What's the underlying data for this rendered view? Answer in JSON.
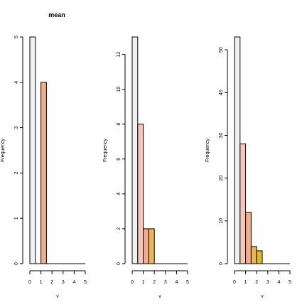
{
  "chart_data": [
    {
      "type": "bar",
      "title": "mean",
      "xlabel": "v",
      "ylabel": "Frequency",
      "xlim": [
        0,
        5
      ],
      "ylim": [
        0,
        5
      ],
      "xticks": [
        "0",
        "1",
        "2",
        "3",
        "4",
        "5"
      ],
      "yticks": [
        "0",
        "1",
        "2",
        "3",
        "4",
        "5"
      ],
      "bins": [
        [
          0,
          0.5
        ],
        [
          0.5,
          1
        ],
        [
          1,
          1.5
        ]
      ],
      "values": [
        5,
        0,
        4
      ],
      "colors": [
        "#f0f0f0",
        "#f3c6bb",
        "#eeaf8e"
      ]
    },
    {
      "type": "bar",
      "title": "",
      "xlabel": "v",
      "ylabel": "Frequency",
      "xlim": [
        0,
        5
      ],
      "ylim": [
        0,
        13
      ],
      "xticks": [
        "0",
        "1",
        "2",
        "3",
        "4",
        "5"
      ],
      "yticks": [
        "0",
        "2",
        "4",
        "6",
        "8",
        "10",
        "12"
      ],
      "bins": [
        [
          0,
          0.5
        ],
        [
          0.5,
          1
        ],
        [
          1,
          1.5
        ],
        [
          1.5,
          2
        ]
      ],
      "values": [
        13,
        8,
        2,
        2
      ],
      "colors": [
        "#f0f0f0",
        "#f3c6bb",
        "#eeaf8e",
        "#e8b560"
      ]
    },
    {
      "type": "bar",
      "title": "",
      "xlabel": "v",
      "ylabel": "Frequency",
      "xlim": [
        0,
        5
      ],
      "ylim": [
        0,
        53
      ],
      "xticks": [
        "0",
        "1",
        "2",
        "3",
        "4",
        "5"
      ],
      "yticks": [
        "0",
        "10",
        "20",
        "30",
        "40",
        "50"
      ],
      "bins": [
        [
          0,
          0.5
        ],
        [
          0.5,
          1
        ],
        [
          1,
          1.5
        ],
        [
          1.5,
          2
        ],
        [
          2,
          2.5
        ]
      ],
      "values": [
        53,
        28,
        12,
        4,
        3
      ],
      "colors": [
        "#f0f0f0",
        "#f3c6bb",
        "#eeaf8e",
        "#e8b560",
        "#e6b830"
      ]
    }
  ]
}
